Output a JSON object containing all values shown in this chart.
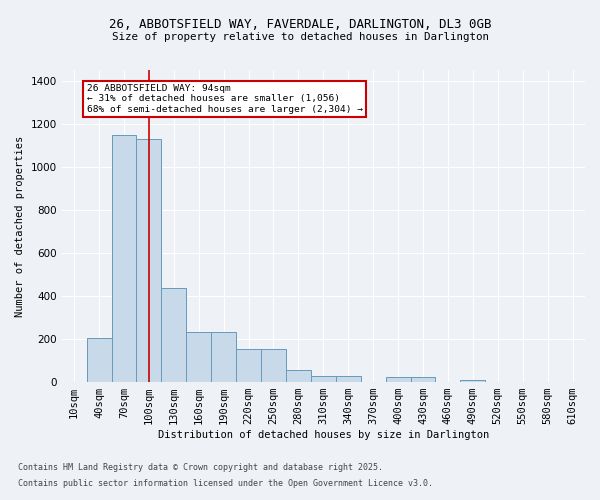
{
  "title_line1": "26, ABBOTSFIELD WAY, FAVERDALE, DARLINGTON, DL3 0GB",
  "title_line2": "Size of property relative to detached houses in Darlington",
  "xlabel": "Distribution of detached houses by size in Darlington",
  "ylabel": "Number of detached properties",
  "categories": [
    "10sqm",
    "40sqm",
    "70sqm",
    "100sqm",
    "130sqm",
    "160sqm",
    "190sqm",
    "220sqm",
    "250sqm",
    "280sqm",
    "310sqm",
    "340sqm",
    "370sqm",
    "400sqm",
    "430sqm",
    "460sqm",
    "490sqm",
    "520sqm",
    "550sqm",
    "580sqm",
    "610sqm"
  ],
  "values": [
    0,
    205,
    1150,
    1130,
    435,
    235,
    235,
    155,
    155,
    55,
    30,
    30,
    0,
    25,
    25,
    0,
    10,
    0,
    0,
    0,
    0
  ],
  "bar_color": "#c8d9ea",
  "bar_edge_color": "#6699bb",
  "background_color": "#eef2f7",
  "grid_color": "#ffffff",
  "annotation_text": "26 ABBOTSFIELD WAY: 94sqm\n← 31% of detached houses are smaller (1,056)\n68% of semi-detached houses are larger (2,304) →",
  "annotation_box_color": "#ffffff",
  "annotation_box_edge": "#cc0000",
  "vline_x_index": 3,
  "vline_color": "#cc0000",
  "ylim": [
    0,
    1450
  ],
  "yticks": [
    0,
    200,
    400,
    600,
    800,
    1000,
    1200,
    1400
  ],
  "footnote1": "Contains HM Land Registry data © Crown copyright and database right 2025.",
  "footnote2": "Contains public sector information licensed under the Open Government Licence v3.0."
}
